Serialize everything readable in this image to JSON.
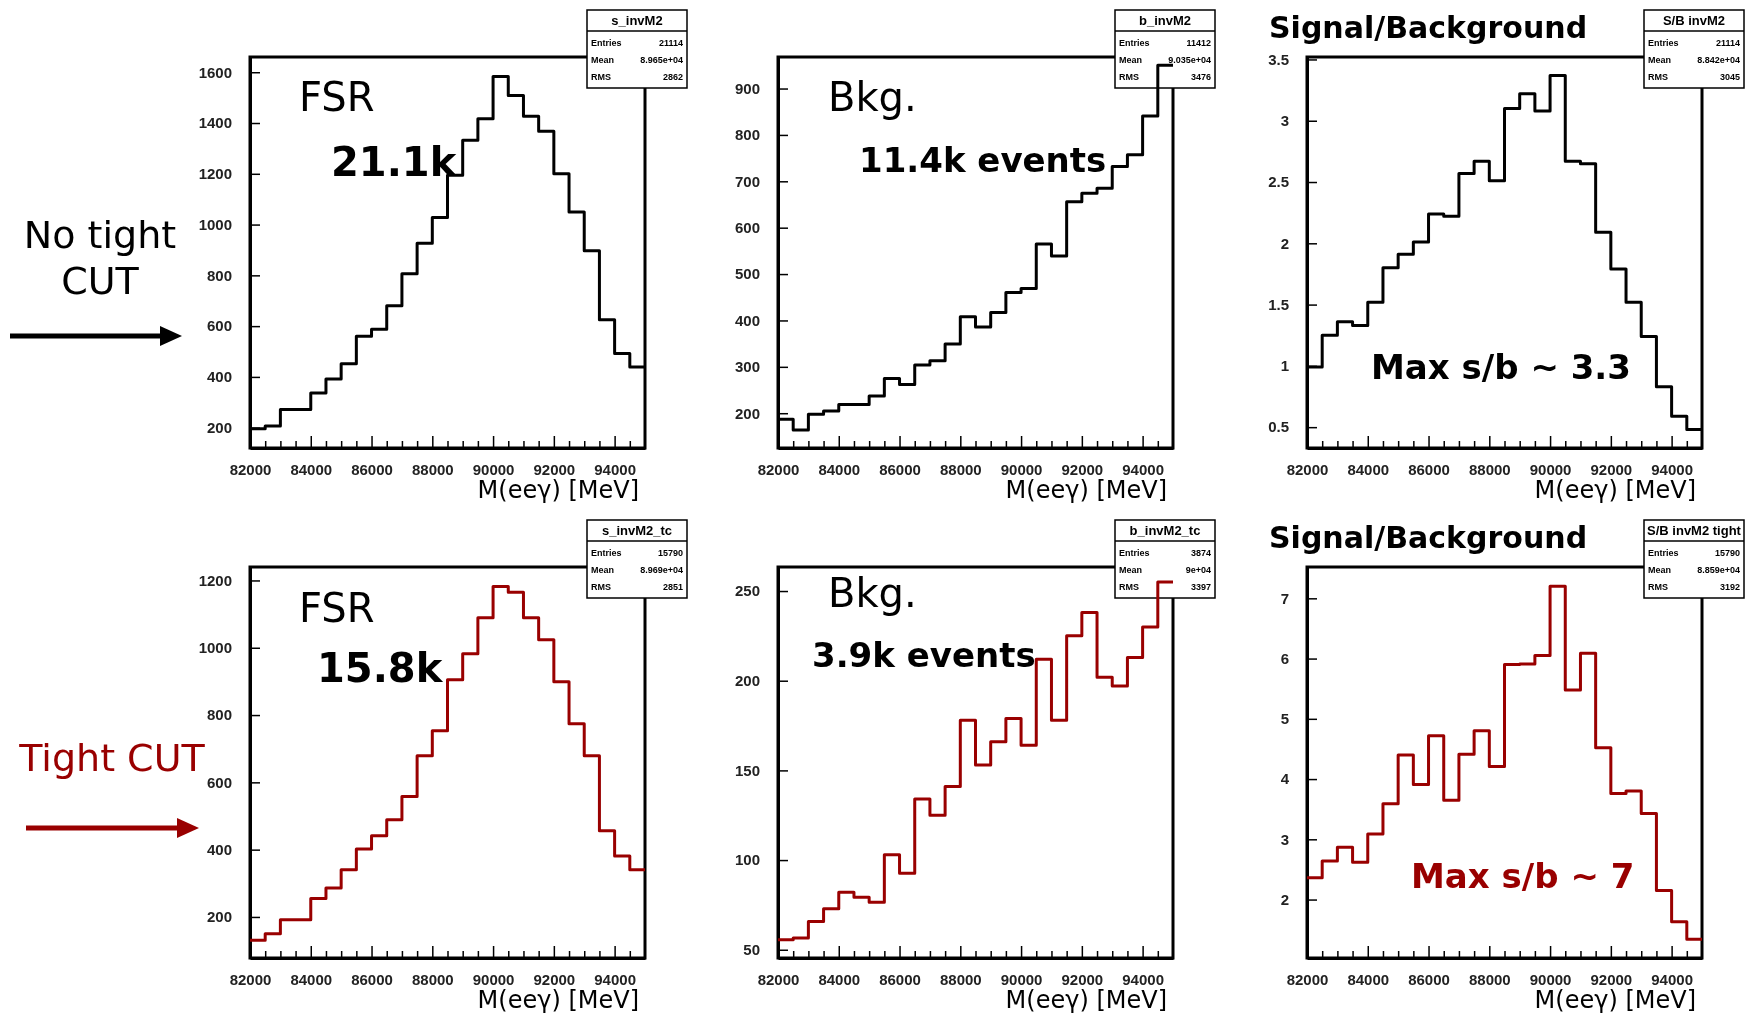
{
  "chart_data": [
    {
      "type": "histogram",
      "xlabel": "M(eeγ) [MeV]",
      "bins": [
        82000,
        82500,
        83000,
        83500,
        84000,
        84500,
        85000,
        85500,
        86000,
        86500,
        87000,
        87500,
        88000,
        88500,
        89000,
        89500,
        90000,
        90500,
        91000,
        91500,
        92000,
        92500,
        93000,
        93500,
        94000,
        94500,
        95000
      ],
      "series": [
        {
          "color": "#000000",
          "values": [
            196,
            207,
            272,
            272,
            337,
            392,
            452,
            560,
            588,
            680,
            806,
            926,
            1028,
            1194,
            1332,
            1417,
            1583,
            1508,
            1427,
            1368,
            1200,
            1050,
            897,
            625,
            492,
            439
          ]
        }
      ],
      "xlim": [
        82000,
        95000
      ],
      "xticks": [
        82000,
        {
          "value": 82500,
          "label": null
        },
        {
          "value": 83000,
          "label": null
        },
        {
          "value": 83500,
          "label": null
        },
        84000,
        {
          "value": 84500,
          "label": null
        },
        {
          "value": 85000,
          "label": null
        },
        {
          "value": 85500,
          "label": null
        },
        86000,
        {
          "value": 86500,
          "label": null
        },
        {
          "value": 87000,
          "label": null
        },
        {
          "value": 87500,
          "label": null
        },
        88000,
        {
          "value": 88500,
          "label": null
        },
        {
          "value": 89000,
          "label": null
        },
        {
          "value": 89500,
          "label": null
        },
        90000,
        {
          "value": 90500,
          "label": null
        },
        {
          "value": 91000,
          "label": null
        },
        {
          "value": 91500,
          "label": null
        },
        92000,
        {
          "value": 92500,
          "label": null
        },
        {
          "value": 93000,
          "label": null
        },
        {
          "value": 93500,
          "label": null
        },
        94000,
        {
          "value": 94500,
          "label": null
        }
      ],
      "ylim": [
        120,
        1660
      ],
      "yticks": [
        200,
        400,
        600,
        800,
        1000,
        1200,
        1400,
        1600
      ],
      "annotations": [
        "s_invM2",
        "Entries",
        "21114",
        "Mean",
        "8.965e+04",
        "RMS",
        "2862",
        "FSR",
        "21.1k",
        "No tight",
        "CUT"
      ]
    },
    {
      "type": "histogram",
      "xlabel": "M(eeγ) [MeV]",
      "bins": [
        82000,
        82500,
        83000,
        83500,
        84000,
        84500,
        85000,
        85500,
        86000,
        86500,
        87000,
        87500,
        88000,
        88500,
        89000,
        89500,
        90000,
        90500,
        91000,
        91500,
        92000,
        92500,
        93000,
        93500,
        94000,
        94500,
        95000
      ],
      "series": [
        {
          "color": "#000000",
          "values": [
            187,
            164,
            198,
            205,
            219,
            219,
            237,
            275,
            262,
            304,
            313,
            349,
            408,
            386,
            417,
            460,
            469,
            565,
            539,
            656,
            674,
            685,
            732,
            757,
            841,
            950
          ]
        }
      ],
      "xlim": [
        82000,
        95000
      ],
      "xticks": [
        82000,
        {
          "value": 82500,
          "label": null
        },
        {
          "value": 83000,
          "label": null
        },
        {
          "value": 83500,
          "label": null
        },
        84000,
        {
          "value": 84500,
          "label": null
        },
        {
          "value": 85000,
          "label": null
        },
        {
          "value": 85500,
          "label": null
        },
        86000,
        {
          "value": 86500,
          "label": null
        },
        {
          "value": 87000,
          "label": null
        },
        {
          "value": 87500,
          "label": null
        },
        88000,
        {
          "value": 88500,
          "label": null
        },
        {
          "value": 89000,
          "label": null
        },
        {
          "value": 89500,
          "label": null
        },
        90000,
        {
          "value": 90500,
          "label": null
        },
        {
          "value": 91000,
          "label": null
        },
        {
          "value": 91500,
          "label": null
        },
        92000,
        {
          "value": 92500,
          "label": null
        },
        {
          "value": 93000,
          "label": null
        },
        {
          "value": 93500,
          "label": null
        },
        94000,
        {
          "value": 94500,
          "label": null
        }
      ],
      "ylim": [
        125,
        968
      ],
      "yticks": [
        200,
        300,
        400,
        500,
        600,
        700,
        800,
        900
      ],
      "annotations": [
        "b_invM2",
        "Entries",
        "11412",
        "Mean",
        "9.035e+04",
        "RMS",
        "3476",
        "Bkg.",
        "11.4k events"
      ]
    },
    {
      "type": "histogram",
      "title": "Signal/Background",
      "xlabel": "M(eeγ) [MeV]",
      "bins": [
        82000,
        82500,
        83000,
        83500,
        84000,
        84500,
        85000,
        85500,
        86000,
        86500,
        87000,
        87500,
        88000,
        88500,
        89000,
        89500,
        90000,
        90500,
        91000,
        91500,
        92000,
        92500,
        93000,
        93500,
        94000,
        94500,
        95000
      ],
      "series": [
        {
          "color": "#000000",
          "values": [
            0.99,
            1.25,
            1.36,
            1.33,
            1.52,
            1.8,
            1.91,
            2.01,
            2.24,
            2.22,
            2.57,
            2.67,
            2.51,
            3.1,
            3.22,
            3.08,
            3.37,
            2.67,
            2.65,
            2.09,
            1.79,
            1.52,
            1.24,
            0.83,
            0.59,
            0.48
          ]
        }
      ],
      "xlim": [
        82000,
        95000
      ],
      "xticks": [
        82000,
        {
          "value": 82500,
          "label": null
        },
        {
          "value": 83000,
          "label": null
        },
        {
          "value": 83500,
          "label": null
        },
        84000,
        {
          "value": 84500,
          "label": null
        },
        {
          "value": 85000,
          "label": null
        },
        {
          "value": 85500,
          "label": null
        },
        86000,
        {
          "value": 86500,
          "label": null
        },
        {
          "value": 87000,
          "label": null
        },
        {
          "value": 87500,
          "label": null
        },
        88000,
        {
          "value": 88500,
          "label": null
        },
        {
          "value": 89000,
          "label": null
        },
        {
          "value": 89500,
          "label": null
        },
        90000,
        {
          "value": 90500,
          "label": null
        },
        {
          "value": 91000,
          "label": null
        },
        {
          "value": 91500,
          "label": null
        },
        92000,
        {
          "value": 92500,
          "label": null
        },
        {
          "value": 93000,
          "label": null
        },
        {
          "value": 93500,
          "label": null
        },
        94000,
        {
          "value": 94500,
          "label": null
        }
      ],
      "ylim": [
        0.33,
        3.52
      ],
      "yticks": [
        0.5,
        1,
        1.5,
        2,
        2.5,
        3,
        3.5
      ],
      "annotations": [
        "S/B invM2",
        "Entries",
        "21114",
        "Mean",
        "8.842e+04",
        "RMS",
        "3045",
        "Max s/b ~ 3.3"
      ]
    },
    {
      "type": "histogram",
      "xlabel": "M(eeγ) [MeV]",
      "bins": [
        82000,
        82500,
        83000,
        83500,
        84000,
        84500,
        85000,
        85500,
        86000,
        86500,
        87000,
        87500,
        88000,
        88500,
        89000,
        89500,
        90000,
        90500,
        91000,
        91500,
        92000,
        92500,
        93000,
        93500,
        94000,
        94500,
        95000
      ],
      "series": [
        {
          "color": "#990000",
          "values": [
            131,
            150,
            192,
            192,
            255,
            286,
            340,
            402,
            441,
            489,
            558,
            679,
            753,
            905,
            982,
            1089,
            1182,
            1165,
            1089,
            1024,
            899,
            774,
            679,
            456,
            381,
            340
          ]
        }
      ],
      "xlim": [
        82000,
        95000
      ],
      "xticks": [
        82000,
        {
          "value": 82500,
          "label": null
        },
        {
          "value": 83000,
          "label": null
        },
        {
          "value": 83500,
          "label": null
        },
        84000,
        {
          "value": 84500,
          "label": null
        },
        {
          "value": 85000,
          "label": null
        },
        {
          "value": 85500,
          "label": null
        },
        86000,
        {
          "value": 86500,
          "label": null
        },
        {
          "value": 87000,
          "label": null
        },
        {
          "value": 87500,
          "label": null
        },
        88000,
        {
          "value": 88500,
          "label": null
        },
        {
          "value": 89000,
          "label": null
        },
        {
          "value": 89500,
          "label": null
        },
        90000,
        {
          "value": 90500,
          "label": null
        },
        {
          "value": 91000,
          "label": null
        },
        {
          "value": 91500,
          "label": null
        },
        92000,
        {
          "value": 92500,
          "label": null
        },
        {
          "value": 93000,
          "label": null
        },
        {
          "value": 93500,
          "label": null
        },
        94000,
        {
          "value": 94500,
          "label": null
        }
      ],
      "ylim": [
        78,
        1240
      ],
      "yticks": [
        200,
        400,
        600,
        800,
        1000,
        1200
      ],
      "annotations": [
        "s_invM2_tc",
        "Entries",
        "15790",
        "Mean",
        "8.969e+04",
        "RMS",
        "2851",
        "FSR",
        "15.8k",
        "Tight CUT"
      ]
    },
    {
      "type": "histogram",
      "xlabel": "M(eeγ) [MeV]",
      "bins": [
        82000,
        82500,
        83000,
        83500,
        84000,
        84500,
        85000,
        85500,
        86000,
        86500,
        87000,
        87500,
        88000,
        88500,
        89000,
        89500,
        90000,
        90500,
        91000,
        91500,
        92000,
        92500,
        93000,
        93500,
        94000,
        94500,
        95000
      ],
      "series": [
        {
          "color": "#990000",
          "values": [
            55.6,
            56.5,
            65.8,
            72.8,
            82.1,
            79.3,
            76.5,
            103,
            92.6,
            134,
            125,
            141,
            178,
            153,
            166,
            179,
            164,
            212,
            178,
            225,
            238,
            202,
            197,
            213,
            230,
            255
          ]
        }
      ],
      "xlim": [
        82000,
        95000
      ],
      "xticks": [
        82000,
        {
          "value": 82500,
          "label": null
        },
        {
          "value": 83000,
          "label": null
        },
        {
          "value": 83500,
          "label": null
        },
        84000,
        {
          "value": 84500,
          "label": null
        },
        {
          "value": 85000,
          "label": null
        },
        {
          "value": 85500,
          "label": null
        },
        86000,
        {
          "value": 86500,
          "label": null
        },
        {
          "value": 87000,
          "label": null
        },
        {
          "value": 87500,
          "label": null
        },
        88000,
        {
          "value": 88500,
          "label": null
        },
        {
          "value": 89000,
          "label": null
        },
        {
          "value": 89500,
          "label": null
        },
        90000,
        {
          "value": 90500,
          "label": null
        },
        {
          "value": 91000,
          "label": null
        },
        {
          "value": 91500,
          "label": null
        },
        92000,
        {
          "value": 92500,
          "label": null
        },
        {
          "value": 93000,
          "label": null
        },
        {
          "value": 93500,
          "label": null
        },
        94000,
        {
          "value": 94500,
          "label": null
        }
      ],
      "ylim": [
        45.4,
        263.4
      ],
      "yticks": [
        50,
        100,
        150,
        200,
        250
      ],
      "annotations": [
        "b_invM2_tc",
        "Entries",
        "3874",
        "Mean",
        "9e+04",
        "RMS",
        "3397",
        "Bkg.",
        "3.9k events"
      ]
    },
    {
      "type": "histogram",
      "title": "Signal/Background",
      "xlabel": "M(eeγ) [MeV]",
      "bins": [
        82000,
        82500,
        83000,
        83500,
        84000,
        84500,
        85000,
        85500,
        86000,
        86500,
        87000,
        87500,
        88000,
        88500,
        89000,
        89500,
        90000,
        90500,
        91000,
        91500,
        92000,
        92500,
        93000,
        93500,
        94000,
        94500,
        95000
      ],
      "series": [
        {
          "color": "#990000",
          "values": [
            2.36,
            2.64,
            2.87,
            2.62,
            3.09,
            3.59,
            4.4,
            3.91,
            4.72,
            3.65,
            4.41,
            4.8,
            4.21,
            5.9,
            5.91,
            6.05,
            7.2,
            5.48,
            6.09,
            4.52,
            3.76,
            3.8,
            3.43,
            2.15,
            1.63,
            1.34
          ]
        }
      ],
      "xlim": [
        82000,
        95000
      ],
      "xticks": [
        82000,
        {
          "value": 82500,
          "label": null
        },
        {
          "value": 83000,
          "label": null
        },
        {
          "value": 83500,
          "label": null
        },
        84000,
        {
          "value": 84500,
          "label": null
        },
        {
          "value": 85000,
          "label": null
        },
        {
          "value": 85500,
          "label": null
        },
        86000,
        {
          "value": 86500,
          "label": null
        },
        {
          "value": 87000,
          "label": null
        },
        {
          "value": 87500,
          "label": null
        },
        88000,
        {
          "value": 88500,
          "label": null
        },
        {
          "value": 89000,
          "label": null
        },
        {
          "value": 89500,
          "label": null
        },
        90000,
        {
          "value": 90500,
          "label": null
        },
        {
          "value": 91000,
          "label": null
        },
        {
          "value": 91500,
          "label": null
        },
        92000,
        {
          "value": 92500,
          "label": null
        },
        {
          "value": 93000,
          "label": null
        },
        {
          "value": 93500,
          "label": null
        },
        94000,
        {
          "value": 94500,
          "label": null
        }
      ],
      "ylim": [
        1.03,
        7.52
      ],
      "yticks": [
        2,
        3,
        4,
        5,
        6,
        7
      ],
      "annotations": [
        "S/B invM2 tight",
        "Entries",
        "15790",
        "Mean",
        "8.859e+04",
        "RMS",
        "3192",
        "Max s/b ~ 7"
      ]
    }
  ]
}
